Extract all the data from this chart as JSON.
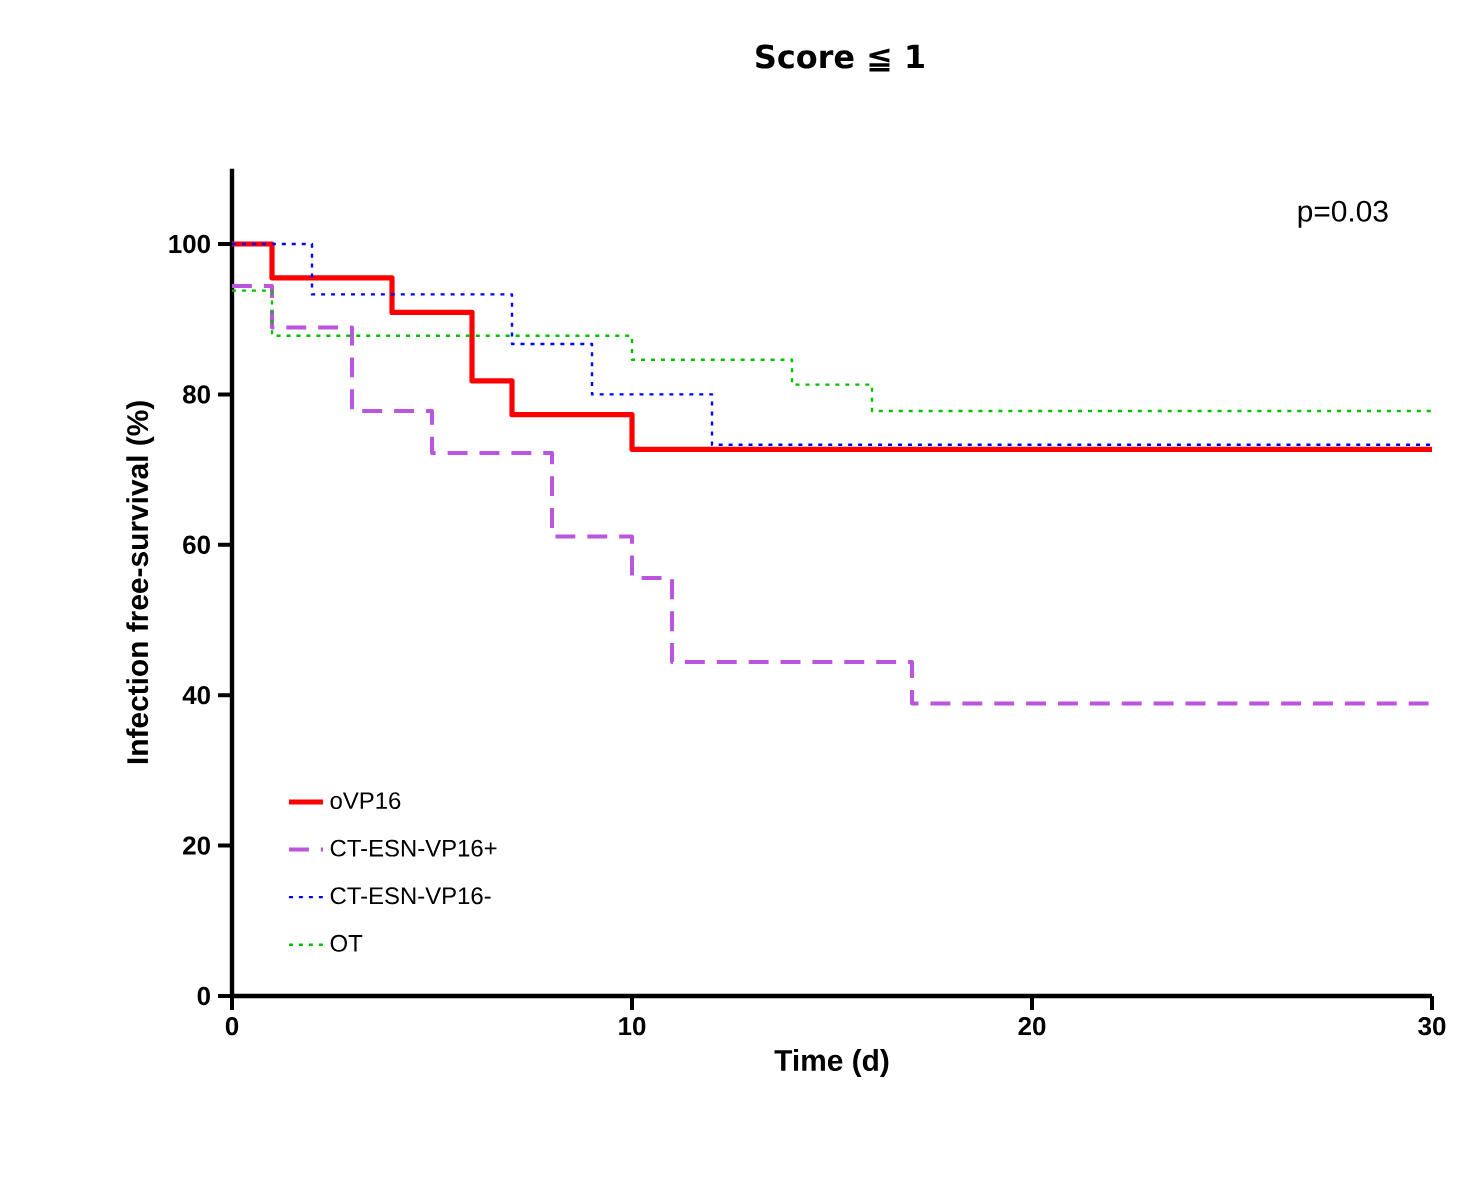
{
  "chart_data": {
    "type": "step",
    "title": "Score ≦ 1",
    "xlabel": "Time (d)",
    "ylabel": "Infection free-survival (%)",
    "xlim": [
      0,
      30
    ],
    "xticks": [
      0,
      10,
      20,
      30
    ],
    "ylim": [
      0,
      110
    ],
    "yticks": [
      0,
      20,
      40,
      60,
      80,
      100
    ],
    "grid": false,
    "legend": "bottom left",
    "annotations": [
      "p=0.03"
    ],
    "series": [
      {
        "name": "oVP16",
        "color": "#ff0000",
        "line_style": "solid",
        "x": [
          0,
          1,
          4,
          6,
          7,
          10,
          30
        ],
        "values": [
          100,
          95.5,
          90.9,
          81.8,
          77.3,
          72.7,
          72.7
        ]
      },
      {
        "name": "CT-ESN-VP16+",
        "color": "#bb55dd",
        "line_style": "dashed",
        "x": [
          0,
          1,
          3,
          5,
          8,
          10,
          11,
          17,
          30
        ],
        "values": [
          94.4,
          88.9,
          77.8,
          72.2,
          61.1,
          55.6,
          44.4,
          38.9,
          38.9
        ]
      },
      {
        "name": "CT-ESN-VP16-",
        "color": "#0000ff",
        "line_style": "dotted",
        "x": [
          0,
          2,
          7,
          9,
          12,
          30
        ],
        "values": [
          100,
          93.3,
          86.7,
          80,
          73.3,
          73.3
        ]
      },
      {
        "name": "OT",
        "color": "#00c000",
        "line_style": "dotted",
        "x": [
          0,
          1,
          10,
          14,
          16,
          30
        ],
        "values": [
          93.8,
          87.8,
          84.6,
          81.3,
          77.8,
          77.8
        ]
      }
    ]
  }
}
